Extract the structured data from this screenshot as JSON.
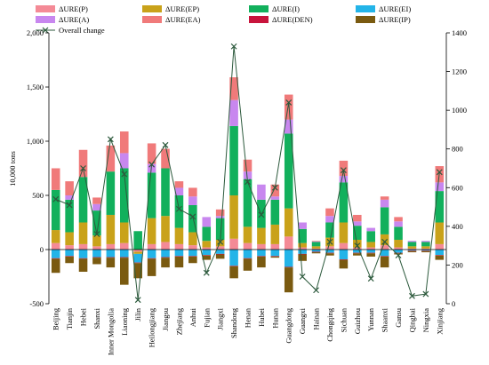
{
  "chart_data": {
    "type": "bar",
    "subtype": "stacked bar with secondary-axis line",
    "ylabel": "10,000 tons",
    "ylim": [
      -500,
      2000
    ],
    "yticks": [
      -500,
      0,
      500,
      1000,
      1500,
      2000
    ],
    "y2lim": [
      0,
      1400
    ],
    "y2ticks": [
      0,
      200,
      400,
      600,
      800,
      1000,
      1200,
      1400
    ],
    "grid": false,
    "legend_position": "top",
    "categories": [
      "Beijing",
      "Tianjin",
      "Hebei",
      "Shanxi",
      "Inner Mongolia",
      "Liaoning",
      "Jilin",
      "Heilongjiang",
      "Jiangsu",
      "Zhejiang",
      "Anhui",
      "Fujian",
      "Jiangxi",
      "Shandong",
      "Henan",
      "Hubei",
      "Hunan",
      "Guangdong",
      "Guangxi",
      "Hainan",
      "Chongqing",
      "Sichuan",
      "Guizhou",
      "Yunnan",
      "Shaanxi",
      "Gansu",
      "Qinghai",
      "Ningxia",
      "Xinjiang"
    ],
    "series": [
      {
        "name": "ΔURE(P)",
        "color": "#f48a96",
        "axis": "left",
        "values": [
          60,
          40,
          50,
          30,
          50,
          60,
          -20,
          50,
          70,
          50,
          40,
          20,
          30,
          100,
          60,
          50,
          50,
          120,
          20,
          10,
          30,
          60,
          20,
          20,
          40,
          20,
          10,
          10,
          50
        ]
      },
      {
        "name": "ΔURE(EP)",
        "color": "#c9a21a",
        "axis": "left",
        "values": [
          120,
          120,
          200,
          100,
          270,
          190,
          -20,
          240,
          240,
          150,
          120,
          60,
          60,
          400,
          150,
          150,
          180,
          260,
          40,
          20,
          80,
          190,
          70,
          50,
          100,
          70,
          20,
          20,
          200
        ]
      },
      {
        "name": "ΔURE(I)",
        "color": "#12b05c",
        "axis": "left",
        "values": [
          370,
          300,
          420,
          230,
          400,
          500,
          170,
          420,
          440,
          300,
          250,
          130,
          200,
          640,
          440,
          260,
          230,
          690,
          130,
          40,
          140,
          370,
          130,
          100,
          250,
          120,
          40,
          40,
          290
        ]
      },
      {
        "name": "ΔURE(EI)",
        "color": "#23b4e8",
        "axis": "left",
        "values": [
          -80,
          -60,
          -80,
          -70,
          -70,
          -70,
          -80,
          -80,
          -70,
          -60,
          -60,
          -50,
          -40,
          -150,
          -80,
          -60,
          -60,
          -160,
          -40,
          -20,
          -30,
          -90,
          -30,
          -30,
          -60,
          -30,
          -10,
          -10,
          -50
        ]
      },
      {
        "name": "ΔURE(A)",
        "color": "#c887ef",
        "axis": "left",
        "values": [
          0,
          40,
          0,
          60,
          0,
          140,
          0,
          80,
          0,
          70,
          80,
          90,
          20,
          240,
          70,
          140,
          30,
          130,
          60,
          5,
          60,
          60,
          40,
          30,
          70,
          50,
          10,
          10,
          80
        ]
      },
      {
        "name": "ΔURE(EA)",
        "color": "#f07a7a",
        "axis": "left",
        "values": [
          200,
          130,
          250,
          60,
          240,
          200,
          0,
          190,
          180,
          60,
          80,
          0,
          60,
          210,
          110,
          0,
          110,
          230,
          0,
          5,
          70,
          140,
          60,
          0,
          30,
          40,
          0,
          0,
          150
        ]
      },
      {
        "name": "ΔURE(DEN)",
        "color": "#c8143c",
        "axis": "left",
        "values": [
          -5,
          -5,
          -5,
          -5,
          -5,
          -5,
          -5,
          -5,
          -5,
          -5,
          -5,
          -5,
          -5,
          -5,
          -5,
          -5,
          -5,
          -5,
          -5,
          -5,
          -5,
          -5,
          -5,
          -5,
          -5,
          -5,
          -5,
          -5,
          -5
        ]
      },
      {
        "name": "ΔURE(IP)",
        "color": "#7a5a10",
        "axis": "left",
        "values": [
          -130,
          -60,
          -120,
          -60,
          -90,
          -250,
          -140,
          -160,
          -90,
          -100,
          -60,
          -40,
          -40,
          -110,
          -110,
          -100,
          -10,
          -230,
          -60,
          -10,
          -20,
          -80,
          -20,
          -30,
          -100,
          -10,
          -10,
          -10,
          -40
        ]
      },
      {
        "name": "Overall change",
        "type": "line",
        "marker": "x",
        "color": "#2d5a3d",
        "axis": "right",
        "values": [
          540,
          510,
          700,
          360,
          850,
          670,
          20,
          720,
          820,
          490,
          450,
          160,
          320,
          1330,
          630,
          460,
          600,
          1040,
          140,
          70,
          320,
          690,
          300,
          130,
          320,
          250,
          40,
          50,
          680
        ]
      }
    ]
  }
}
